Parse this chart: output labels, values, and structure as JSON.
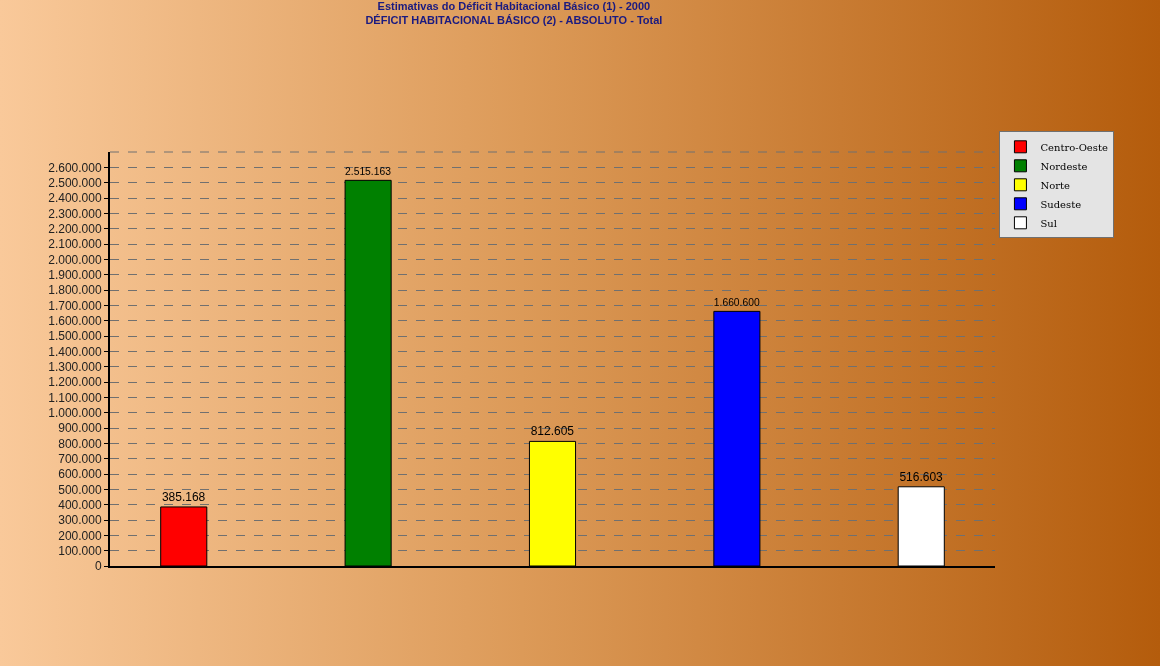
{
  "chart_data": {
    "type": "bar",
    "title": "Estimativas do Déficit Habitacional Básico (1) - 2000",
    "subtitle": "DÉFICIT HABITACIONAL BÁSICO (2) - ABSOLUTO - Total",
    "categories": [
      null,
      null,
      null,
      null,
      null
    ],
    "series": [
      {
        "name": "Centro-Oeste",
        "color": "#ff0000",
        "values": [
          385168,
          null,
          null,
          null,
          null
        ],
        "value_labels": [
          "385.168",
          null,
          null,
          null,
          null
        ]
      },
      {
        "name": "Nordeste",
        "color": "#008000",
        "values": [
          null,
          2515163,
          null,
          null,
          null
        ],
        "value_labels": [
          null,
          "2.515.163",
          null,
          null,
          null
        ]
      },
      {
        "name": "Norte",
        "color": "#ffff00",
        "values": [
          null,
          null,
          812605,
          null,
          null
        ],
        "value_labels": [
          null,
          null,
          "812.605",
          null,
          null
        ]
      },
      {
        "name": "Sudeste",
        "color": "#0000ff",
        "values": [
          null,
          null,
          null,
          1660600,
          null
        ],
        "value_labels": [
          null,
          null,
          null,
          "1.660.600",
          null
        ]
      },
      {
        "name": "Sul",
        "color": "#ffffff",
        "values": [
          null,
          null,
          null,
          null,
          516603
        ],
        "value_labels": [
          null,
          null,
          null,
          null,
          "516.603"
        ]
      }
    ],
    "ylim": [
      0,
      2700000
    ],
    "yticks": [
      0,
      {
        "value": 100000,
        "label": "100.000"
      },
      {
        "value": 200000,
        "label": "200.000"
      },
      {
        "value": 300000,
        "label": "300.000"
      },
      {
        "value": 400000,
        "label": "400.000"
      },
      {
        "value": 500000,
        "label": "500.000"
      },
      {
        "value": 600000,
        "label": "600.000"
      },
      {
        "value": 700000,
        "label": "700.000"
      },
      {
        "value": 800000,
        "label": "800.000"
      },
      {
        "value": 900000,
        "label": "900.000"
      },
      {
        "value": 1000000,
        "label": "1.000.000"
      },
      {
        "value": 1100000,
        "label": "1.100.000"
      },
      {
        "value": 1200000,
        "label": "1.200.000"
      },
      {
        "value": 1300000,
        "label": "1.300.000"
      },
      {
        "value": 1400000,
        "label": "1.400.000"
      },
      {
        "value": 1500000,
        "label": "1.500.000"
      },
      {
        "value": 1600000,
        "label": "1.600.000"
      },
      {
        "value": 1700000,
        "label": "1.700.000"
      },
      {
        "value": 1800000,
        "label": "1.800.000"
      },
      {
        "value": 1900000,
        "label": "1.900.000"
      },
      {
        "value": 2000000,
        "label": "2.000.000"
      },
      {
        "value": 2100000,
        "label": "2.100.000"
      },
      {
        "value": 2200000,
        "label": "2.200.000"
      },
      {
        "value": 2300000,
        "label": "2.300.000"
      },
      {
        "value": 2400000,
        "label": "2.400.000"
      },
      {
        "value": 2500000,
        "label": "2.500.000"
      },
      {
        "value": 2600000,
        "label": "2.600.000"
      }
    ],
    "grid": "y",
    "legend": "top right"
  }
}
